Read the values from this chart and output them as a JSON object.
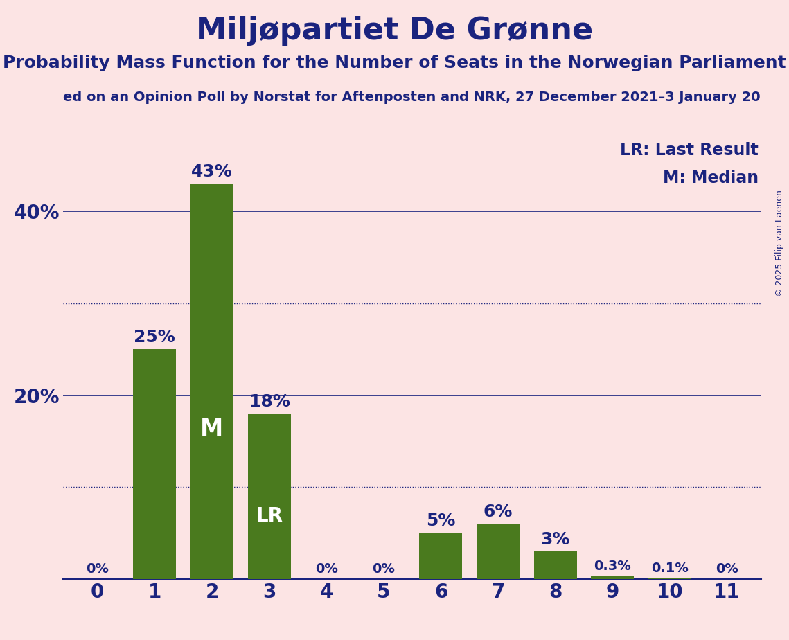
{
  "title": "Miljøpartiet De Grønne",
  "subtitle": "Probability Mass Function for the Number of Seats in the Norwegian Parliament",
  "source_line": "ed on an Opinion Poll by Norstat for Aftenposten and NRK, 27 December 2021–3 January 20",
  "copyright": "© 2025 Filip van Laenen",
  "categories": [
    0,
    1,
    2,
    3,
    4,
    5,
    6,
    7,
    8,
    9,
    10,
    11
  ],
  "values": [
    0.0,
    25.0,
    43.0,
    18.0,
    0.0,
    0.0,
    5.0,
    6.0,
    3.0,
    0.3,
    0.1,
    0.0
  ],
  "bar_color": "#4a7a1e",
  "background_color": "#fce4e4",
  "title_color": "#1a237e",
  "text_color": "#1a237e",
  "bar_label_color_dark": "#1a237e",
  "bar_label_color_light": "#ffffff",
  "median_bar": 2,
  "lr_bar": 3,
  "ylim": [
    0,
    48
  ],
  "yticks": [
    20,
    40
  ],
  "ytick_labels": [
    "20%",
    "40%"
  ],
  "solid_lines": [
    20,
    40
  ],
  "dotted_lines": [
    10,
    30
  ],
  "bar_labels": [
    "0%",
    "25%",
    "43%",
    "18%",
    "0%",
    "0%",
    "5%",
    "6%",
    "3%",
    "0.3%",
    "0.1%",
    "0%"
  ],
  "title_fontsize": 32,
  "subtitle_fontsize": 18,
  "source_fontsize": 14,
  "axis_label_fontsize": 20,
  "bar_label_fontsize_large": 18,
  "bar_label_fontsize_small": 14,
  "legend_fontsize": 17,
  "copyright_fontsize": 9
}
